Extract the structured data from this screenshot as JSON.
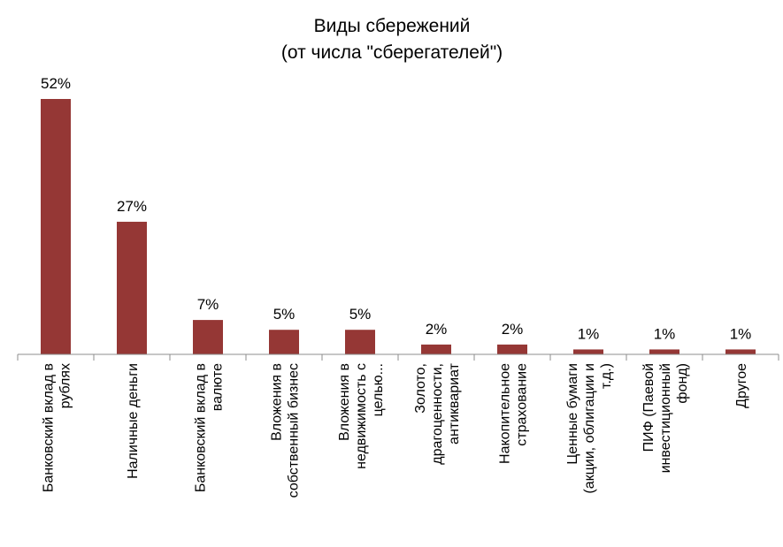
{
  "chart_data": {
    "type": "bar",
    "title": [
      "Виды сбережений",
      "(от числа \"сберегателей\")"
    ],
    "categories": [
      [
        "Банковский вклад в",
        "рублях"
      ],
      [
        "Наличные деньги"
      ],
      [
        "Банковский вклад в",
        "валюте"
      ],
      [
        "Вложения в",
        "собственный бизнес"
      ],
      [
        "Вложения в",
        "недвижимость с",
        "целью..."
      ],
      [
        "Золото,",
        "драгоценности,",
        "антиквариат"
      ],
      [
        "Накопительное",
        "страхование"
      ],
      [
        "Ценные бумаги",
        "(акции, облигации и",
        "т.д.)"
      ],
      [
        "ПИФ (Паевой",
        "инвестиционный",
        "фонд)"
      ],
      [
        "Другое"
      ]
    ],
    "values": [
      52,
      27,
      7,
      5,
      5,
      2,
      2,
      1,
      1,
      1
    ],
    "value_labels": [
      "52%",
      "27%",
      "7%",
      "5%",
      "5%",
      "2%",
      "2%",
      "1%",
      "1%",
      "1%"
    ],
    "unit": "%",
    "ylim": [
      0,
      52
    ],
    "grid": false,
    "legend": "none",
    "bar_color": "#953735",
    "axis_color": "#8c8c8c"
  }
}
